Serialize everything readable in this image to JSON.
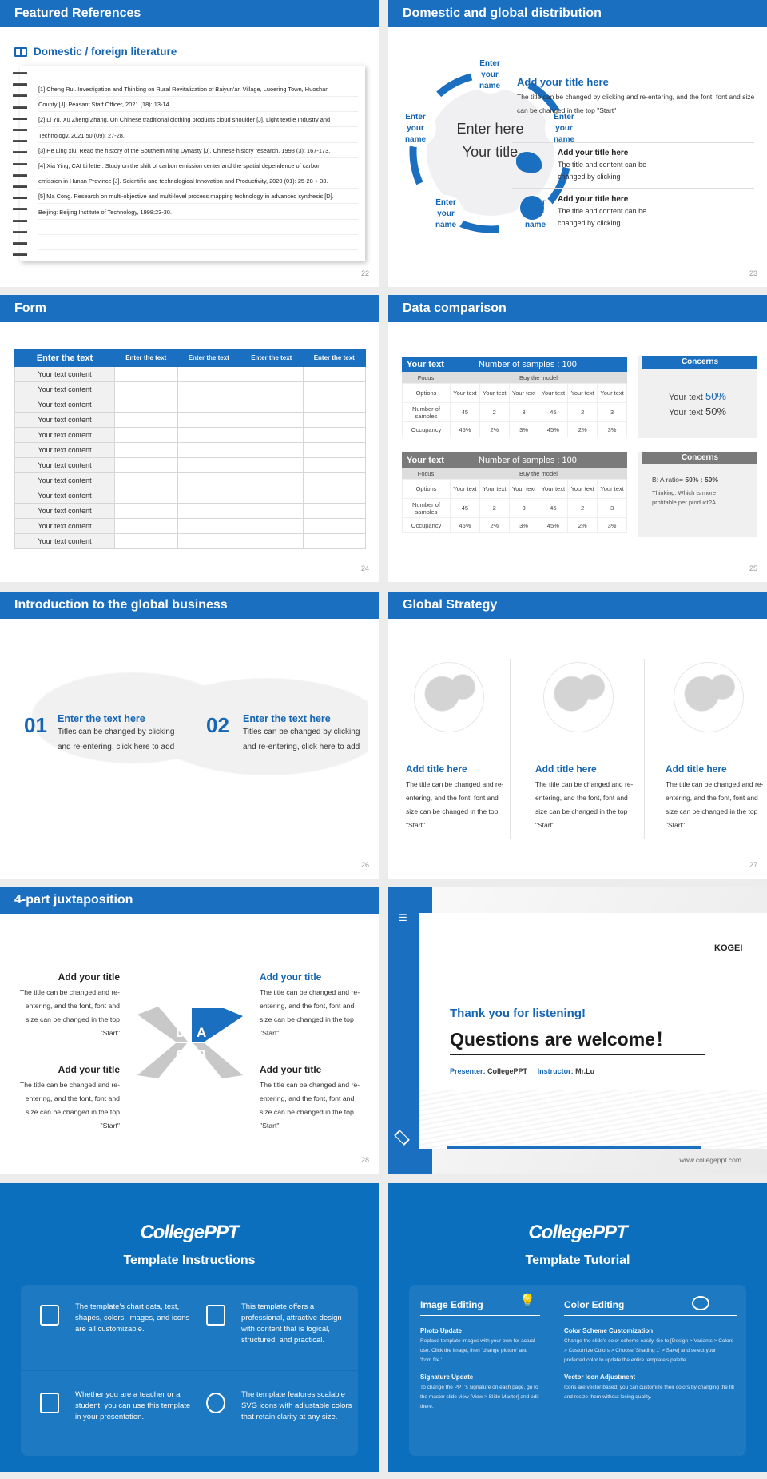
{
  "colors": {
    "accent": "#1a6fc0",
    "panel_blue": "#0b6fbe"
  },
  "slide22": {
    "title": "Featured References",
    "section": "Domestic / foreign literature",
    "icon": "book-icon",
    "page": "22",
    "refs": [
      "[1] Cheng Rui. Investigation and Thinking on Rural Revitalization of Baiyun'an Village, Luoering Town, Huoshan",
      "County [J]. Peasant Staff Officer, 2021 (18): 13-14.",
      "[2] Li Yu, Xu Zheng Zhang. On Chinese traditional clothing products cloud shoulder [J]. Light textile Industry and",
      "Technology, 2021,50 (09): 27-28.",
      "[3] He Ling xiu. Read the history of the Southern Ming Dynasty [J]. Chinese history research, 1998 (3): 167-173.",
      "[4] Xia Ying, CAI Li letter. Study on the shift of carbon emission center and the spatial dependence of carbon",
      "emission in Hunan Province [J]. Scientific and technological Innovation and Productivity, 2020 (01): 25-28 + 33.",
      "[5] Ma Cong. Research on multi-objective and multi-level process mapping technology in advanced synthesis [D].",
      "Beijing: Beijing Institute of Technology, 1998:23-30.",
      "",
      ""
    ]
  },
  "slide23": {
    "title": "Domestic and global distribution",
    "page": "23",
    "center_line1": "Enter here",
    "center_line2": "Your title",
    "node_label": "Enter your name",
    "main_title": "Add your title here",
    "main_text": "The title can be changed by clicking and re-entering, and the font, font and size can be changed in the top \"Start\"",
    "items": [
      {
        "icon": "china-map-icon",
        "title": "Add your title here",
        "text": "The title and content can be changed by clicking"
      },
      {
        "icon": "globe-icon",
        "title": "Add your title here",
        "text": "The title and content can be changed by clicking"
      }
    ]
  },
  "slide24": {
    "title": "Form",
    "page": "24",
    "headers": [
      "Enter the text",
      "Enter the text",
      "Enter the text",
      "Enter the text",
      "Enter the text"
    ],
    "row_label": "Your text content",
    "row_count": 12
  },
  "slide25": {
    "title": "Data comparison",
    "page": "25",
    "tables": [
      {
        "left": "Your text",
        "right": "Number of samples : 100",
        "color": "#1a6fc0"
      },
      {
        "left": "Your text",
        "right": "Number of samples : 100",
        "color": "#7a7a7a"
      }
    ],
    "focus": "Focus",
    "buy": "Buy the model",
    "options": "Options",
    "option_val": "Your text",
    "samples_label": "Number of samples",
    "samples": [
      "45",
      "2",
      "3",
      "45",
      "2",
      "3"
    ],
    "occupancy_label": "Occupancy",
    "occupancy": [
      "45%",
      "2%",
      "3%",
      "45%",
      "2%",
      "3%"
    ],
    "concerns": "Concerns",
    "c1_line1": "Your text",
    "c1_val1": "50%",
    "c1_line2": "Your text",
    "c1_val2": "50%",
    "c2_ratio": "B: A ratio=",
    "c2_ratio_val": "50% : 50%",
    "c2_text": "Thinking: Which is more profitable per product?A"
  },
  "slide26": {
    "title": "Introduction to the global business",
    "page": "26",
    "items": [
      {
        "num": "01",
        "title": "Enter the text here",
        "text": "Titles can be changed by clicking and re-entering, click here to add"
      },
      {
        "num": "02",
        "title": "Enter the text here",
        "text": "Titles can be changed by clicking and re-entering, click here to add"
      }
    ]
  },
  "slide27": {
    "title": "Global Strategy",
    "page": "27",
    "cols": [
      {
        "title": "Add title here",
        "text": "The title can be changed and re-entering, and the font, font and size can be changed in the top \"Start\""
      },
      {
        "title": "Add title here",
        "text": "The title can be changed and re-entering, and the font, font and size can be changed in the top \"Start\""
      },
      {
        "title": "Add title here",
        "text": "The title can be changed and re-entering, and the font, font and size can be changed in the top \"Start\""
      }
    ]
  },
  "slide28": {
    "title": "4-part juxtaposition",
    "page": "28",
    "letters": [
      "A",
      "B",
      "C",
      "D"
    ],
    "items": [
      {
        "title": "Add your title",
        "text": "The title can be changed and re-entering, and the font, font and size can be changed in the top \"Start\""
      },
      {
        "title": "Add your title",
        "text": "The title can be changed and re-entering, and the font, font and size can be changed in the top \"Start\""
      },
      {
        "title": "Add your title",
        "text": "The title can be changed and re-entering, and the font, font and size can be changed in the top \"Start\""
      },
      {
        "title": "Add your title",
        "text": "The title can be changed and re-entering, and the font, font and size can be changed in the top \"Start\""
      }
    ]
  },
  "thanks": {
    "logo": "KOGEI",
    "line1": "Thank you for listening!",
    "line2": "Questions are welcome！",
    "presenter_label": "Presenter:",
    "presenter": "CollegePPT",
    "instructor_label": "Instructor:",
    "instructor": "Mr.Lu",
    "url": "www.collegeppt.com"
  },
  "instructions": {
    "logo": "CollegePPT",
    "title": "Template Instructions",
    "cells": [
      {
        "icon": "slides-icon",
        "text": "The template's chart data, text, shapes, colors, images, and icons are all customizable."
      },
      {
        "icon": "stack-icon",
        "text": "This template offers a professional, attractive design with content that is logical, structured, and practical."
      },
      {
        "icon": "teacher-icon",
        "text": "Whether you are a teacher or a student, you can use this template in your presentation."
      },
      {
        "icon": "ball-icon",
        "text": "The template features scalable SVG icons with adjustable colors that retain clarity at any size."
      }
    ]
  },
  "tutorial": {
    "logo": "CollegePPT",
    "title": "Template Tutorial",
    "left": {
      "heading": "Image Editing",
      "icon": "lightbulb-icon",
      "sections": [
        {
          "title": "Photo Update",
          "text": "Replace template images with your own for actual use. Click the image, then 'change picture' and 'from file.'"
        },
        {
          "title": "Signature Update",
          "text": "To change the PPT's signature on each page, go to the master slide view [View > Slide Master] and edit there."
        }
      ]
    },
    "right": {
      "heading": "Color Editing",
      "icon": "palette-icon",
      "sections": [
        {
          "title": "Color Scheme Customization",
          "text": "Change the slide's color scheme easily. Go to [Design > Variants > Colors > Customize Colors > Choose 'Shading 1' > Save] and select your preferred color to update the entire template's palette."
        },
        {
          "title": "Vector Icon Adjustment",
          "text": "Icons are vector-based; you can customize their colors by changing the fill and resize them without losing quality."
        }
      ]
    }
  }
}
